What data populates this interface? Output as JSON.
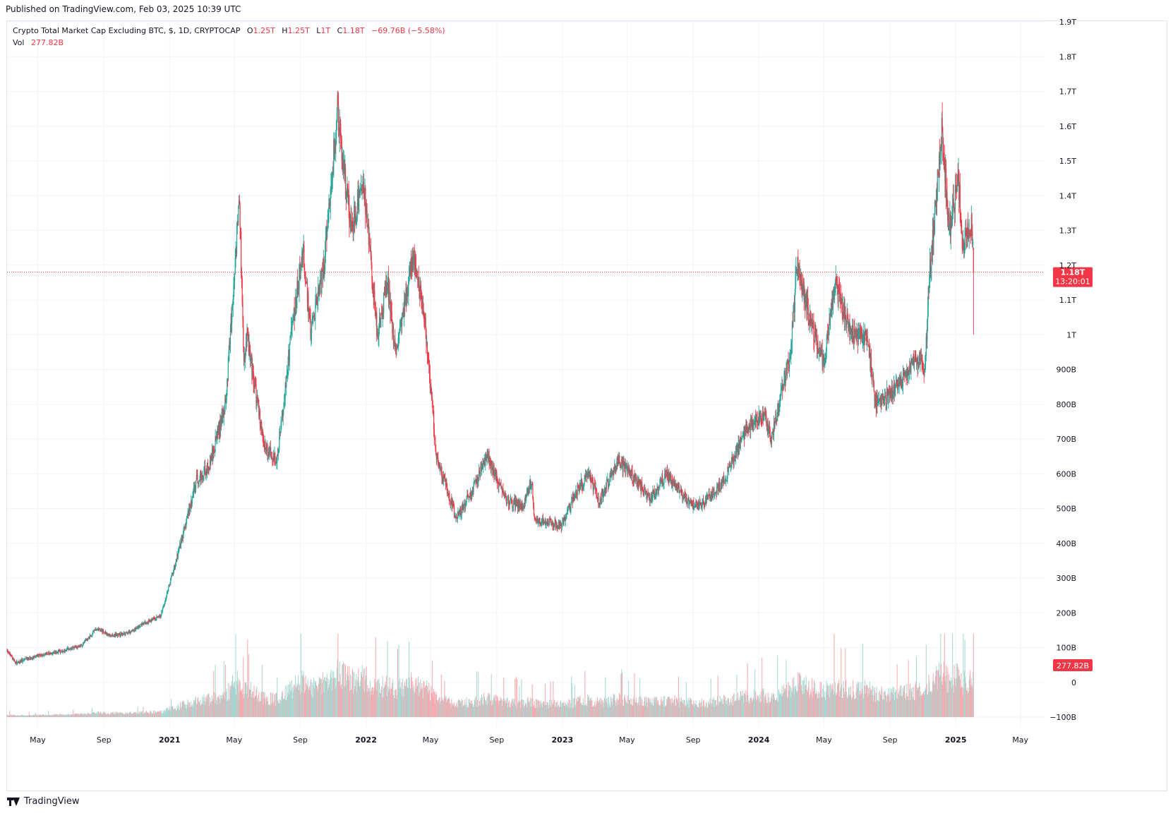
{
  "publish_note": "Published on TradingView.com, Feb 03, 2025 10:39 UTC",
  "legend": {
    "symbol": "Crypto Total Market Cap Excluding BTC, $, 1D, CRYPTOCAP",
    "o_label": "O",
    "o_value": "1.25T",
    "h_label": "H",
    "h_value": "1.25T",
    "l_label": "L",
    "l_value": "1T",
    "c_label": "C",
    "c_value": "1.18T",
    "change": "−69.76B (−5.58%)",
    "vol_label": "Vol",
    "vol_value": "277.82B"
  },
  "brand": "TradingView",
  "colors": {
    "up": "#26a69a",
    "down": "#f23645",
    "up_vol": "#a6d6d1",
    "down_vol": "#f7a8ad",
    "grid": "#f0f3fa",
    "axis_text": "#131722"
  },
  "price_badge": {
    "price": "1.18T",
    "countdown": "13:20:01"
  },
  "volume_badge": "277.82B",
  "chart_data": {
    "type": "candlestick",
    "title": "Crypto Total Market Cap Excluding BTC, $, 1D, CRYPTOCAP",
    "ylim": [
      0,
      1900000000000
    ],
    "y_ticks": [
      {
        "value": 1900000000000,
        "label": "1.9T"
      },
      {
        "value": 1800000000000,
        "label": "1.8T"
      },
      {
        "value": 1700000000000,
        "label": "1.7T"
      },
      {
        "value": 1600000000000,
        "label": "1.6T"
      },
      {
        "value": 1500000000000,
        "label": "1.5T"
      },
      {
        "value": 1400000000000,
        "label": "1.4T"
      },
      {
        "value": 1300000000000,
        "label": "1.3T"
      },
      {
        "value": 1200000000000,
        "label": "1.2T"
      },
      {
        "value": 1100000000000,
        "label": "1.1T"
      },
      {
        "value": 1000000000000,
        "label": "1T"
      },
      {
        "value": 900000000000,
        "label": "900B"
      },
      {
        "value": 800000000000,
        "label": "800B"
      },
      {
        "value": 700000000000,
        "label": "700B"
      },
      {
        "value": 600000000000,
        "label": "600B"
      },
      {
        "value": 500000000000,
        "label": "500B"
      },
      {
        "value": 400000000000,
        "label": "400B"
      },
      {
        "value": 300000000000,
        "label": "300B"
      },
      {
        "value": 200000000000,
        "label": "200B"
      },
      {
        "value": 100000000000,
        "label": "100B"
      },
      {
        "value": 0,
        "label": "0"
      },
      {
        "value": -100000000000,
        "label": "−100B"
      }
    ],
    "x_ticks": [
      {
        "date": "2020-05-01",
        "label": "May",
        "bold": false
      },
      {
        "date": "2020-09-01",
        "label": "Sep",
        "bold": false
      },
      {
        "date": "2021-01-01",
        "label": "2021",
        "bold": true
      },
      {
        "date": "2021-05-01",
        "label": "May",
        "bold": false
      },
      {
        "date": "2021-09-01",
        "label": "Sep",
        "bold": false
      },
      {
        "date": "2022-01-01",
        "label": "2022",
        "bold": true
      },
      {
        "date": "2022-05-01",
        "label": "May",
        "bold": false
      },
      {
        "date": "2022-09-01",
        "label": "Sep",
        "bold": false
      },
      {
        "date": "2023-01-01",
        "label": "2023",
        "bold": true
      },
      {
        "date": "2023-05-01",
        "label": "May",
        "bold": false
      },
      {
        "date": "2023-09-01",
        "label": "Sep",
        "bold": false
      },
      {
        "date": "2024-01-01",
        "label": "2024",
        "bold": true
      },
      {
        "date": "2024-05-01",
        "label": "May",
        "bold": false
      },
      {
        "date": "2024-09-01",
        "label": "Sep",
        "bold": false
      },
      {
        "date": "2025-01-01",
        "label": "2025",
        "bold": true
      },
      {
        "date": "2025-05-01",
        "label": "May",
        "bold": false
      }
    ],
    "x_range": [
      "2020-03-05",
      "2025-06-15"
    ],
    "close_keypoints": [
      [
        "2020-03-05",
        90
      ],
      [
        "2020-03-10",
        82
      ],
      [
        "2020-03-20",
        55
      ],
      [
        "2020-04-15",
        70
      ],
      [
        "2020-05-15",
        82
      ],
      [
        "2020-06-15",
        90
      ],
      [
        "2020-07-20",
        105
      ],
      [
        "2020-08-20",
        155
      ],
      [
        "2020-09-10",
        135
      ],
      [
        "2020-10-15",
        140
      ],
      [
        "2020-11-20",
        175
      ],
      [
        "2020-12-15",
        190
      ],
      [
        "2021-01-10",
        330
      ],
      [
        "2021-02-20",
        580
      ],
      [
        "2021-03-15",
        620
      ],
      [
        "2021-04-15",
        800
      ],
      [
        "2021-05-11",
        1400
      ],
      [
        "2021-05-19",
        900
      ],
      [
        "2021-05-25",
        1000
      ],
      [
        "2021-06-25",
        680
      ],
      [
        "2021-07-20",
        640
      ],
      [
        "2021-08-15",
        1000
      ],
      [
        "2021-09-06",
        1250
      ],
      [
        "2021-09-20",
        1000
      ],
      [
        "2021-10-15",
        1200
      ],
      [
        "2021-11-09",
        1650
      ],
      [
        "2021-12-05",
        1300
      ],
      [
        "2021-12-27",
        1450
      ],
      [
        "2022-01-22",
        1000
      ],
      [
        "2022-02-10",
        1150
      ],
      [
        "2022-02-24",
        950
      ],
      [
        "2022-03-30",
        1220
      ],
      [
        "2022-04-20",
        1050
      ],
      [
        "2022-05-12",
        650
      ],
      [
        "2022-06-18",
        470
      ],
      [
        "2022-07-20",
        560
      ],
      [
        "2022-08-14",
        650
      ],
      [
        "2022-09-20",
        520
      ],
      [
        "2022-10-20",
        510
      ],
      [
        "2022-11-05",
        580
      ],
      [
        "2022-11-10",
        470
      ],
      [
        "2022-12-30",
        450
      ],
      [
        "2023-01-30",
        560
      ],
      [
        "2023-02-20",
        600
      ],
      [
        "2023-03-10",
        520
      ],
      [
        "2023-04-15",
        640
      ],
      [
        "2023-06-15",
        530
      ],
      [
        "2023-07-13",
        600
      ],
      [
        "2023-08-20",
        520
      ],
      [
        "2023-09-15",
        510
      ],
      [
        "2023-10-25",
        570
      ],
      [
        "2023-12-10",
        730
      ],
      [
        "2024-01-10",
        770
      ],
      [
        "2024-01-24",
        700
      ],
      [
        "2024-02-29",
        950
      ],
      [
        "2024-03-12",
        1200
      ],
      [
        "2024-04-13",
        1000
      ],
      [
        "2024-05-01",
        920
      ],
      [
        "2024-05-21",
        1150
      ],
      [
        "2024-06-20",
        1000
      ],
      [
        "2024-07-20",
        1000
      ],
      [
        "2024-08-05",
        800
      ],
      [
        "2024-09-15",
        850
      ],
      [
        "2024-10-20",
        930
      ],
      [
        "2024-11-05",
        900
      ],
      [
        "2024-11-12",
        1150
      ],
      [
        "2024-12-06",
        1580
      ],
      [
        "2024-12-20",
        1300
      ],
      [
        "2025-01-06",
        1450
      ],
      [
        "2025-01-13",
        1250
      ],
      [
        "2025-01-30",
        1320
      ],
      [
        "2025-02-02",
        1250
      ],
      [
        "2025-02-03",
        1180
      ]
    ],
    "last_close": 1180,
    "last_open": 1250,
    "last_high": 1250,
    "last_low": 1000,
    "units": "billions USD"
  }
}
